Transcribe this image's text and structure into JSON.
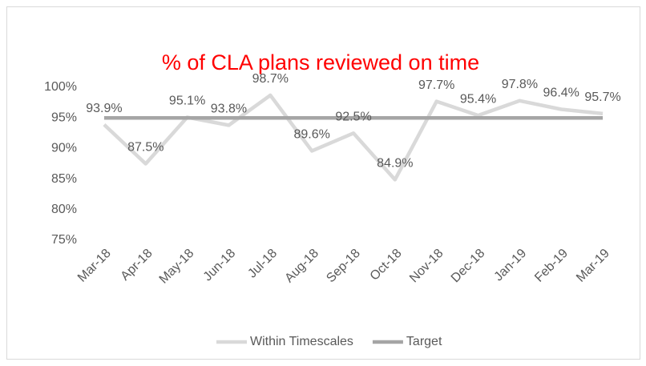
{
  "chart_data": {
    "type": "line",
    "title": "% of CLA plans reviewed on time",
    "categories": [
      "Mar-18",
      "Apr-18",
      "May-18",
      "Jun-18",
      "Jul-18",
      "Aug-18",
      "Sep-18",
      "Oct-18",
      "Nov-18",
      "Dec-18",
      "Jan-19",
      "Feb-19",
      "Mar-19"
    ],
    "series": [
      {
        "name": "Within Timescales",
        "color": "#d9d9d9",
        "values": [
          93.9,
          87.5,
          95.1,
          93.8,
          98.7,
          89.6,
          92.5,
          84.9,
          97.7,
          95.4,
          97.8,
          96.4,
          95.7
        ],
        "value_labels": [
          "93.9%",
          "87.5%",
          "95.1%",
          "93.8%",
          "98.7%",
          "89.6%",
          "92.5%",
          "84.9%",
          "97.7%",
          "95.4%",
          "97.8%",
          "96.4%",
          "95.7%"
        ]
      },
      {
        "name": "Target",
        "color": "#a5a5a5",
        "values": [
          95,
          95,
          95,
          95,
          95,
          95,
          95,
          95,
          95,
          95,
          95,
          95,
          95
        ]
      }
    ],
    "ylim": [
      75,
      100
    ],
    "yticks": [
      {
        "value": 75,
        "label": "75%"
      },
      {
        "value": 80,
        "label": "80%"
      },
      {
        "value": 85,
        "label": "85%"
      },
      {
        "value": 90,
        "label": "90%"
      },
      {
        "value": 95,
        "label": "95%"
      },
      {
        "value": 100,
        "label": "100%"
      }
    ],
    "grid": false,
    "legend": "bottom",
    "title_color": "#ff0000"
  }
}
